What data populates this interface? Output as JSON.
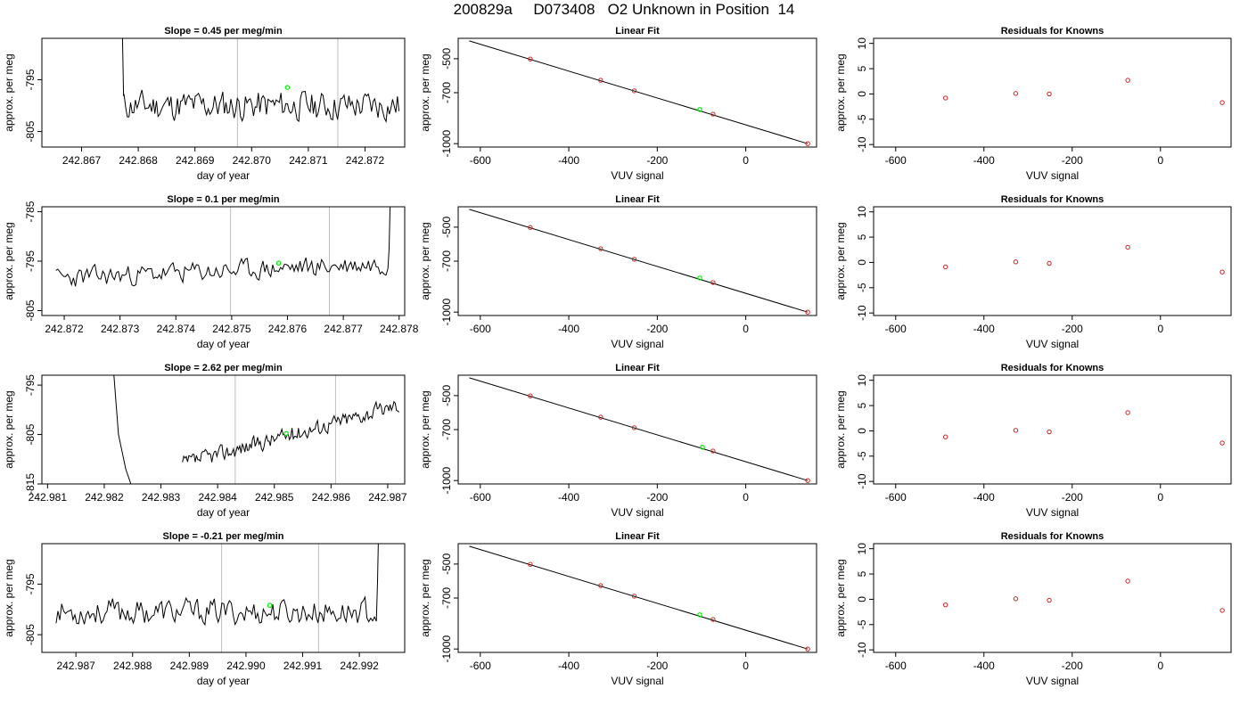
{
  "page": {
    "title": "200829a     D073408   O2 Unknown in Position  14"
  },
  "colors": {
    "trace": "#000000",
    "window_marker": "#bebebe",
    "unknown_point": "#00ee00",
    "known_point": "#cc2222",
    "axis": "#000000"
  },
  "chart_data": [
    {
      "type": "line",
      "row": 0,
      "col": 0,
      "title": "Slope =  0.45  per meg/min",
      "xlabel": "day of year",
      "ylabel": "approx. per meg",
      "xlim": [
        242.8663,
        242.8727
      ],
      "ylim": [
        -808,
        -787
      ],
      "x_ticks": [
        "242.867",
        "242.868",
        "242.869",
        "242.870",
        "242.871",
        "242.872"
      ],
      "x_tick_values": [
        242.867,
        242.868,
        242.869,
        242.87,
        242.871,
        242.872
      ],
      "y_ticks": [
        "-805",
        "-795"
      ],
      "y_tick_values": [
        -805,
        -795
      ],
      "window_markers": [
        242.86975,
        242.87152
      ],
      "unknown_point": {
        "x": 242.87063,
        "y": -796.5
      },
      "trace": {
        "x_start": 242.86775,
        "x_end": 242.8726,
        "base": -800,
        "amplitude": 2.5,
        "trend": 0,
        "seed": 11,
        "start_spike": -780,
        "end_spike": null
      }
    },
    {
      "type": "scatter",
      "row": 0,
      "col": 1,
      "title": "Linear Fit",
      "xlabel": "VUV signal",
      "ylabel": "approx. per meg",
      "xlim": [
        -650,
        160
      ],
      "ylim": [
        -1020,
        -380
      ],
      "x_ticks": [
        "-600",
        "-400",
        "-200",
        "0"
      ],
      "x_tick_values": [
        -600,
        -400,
        -200,
        0
      ],
      "y_ticks": [
        "-1000",
        "-700",
        "-500"
      ],
      "y_tick_values": [
        -1000,
        -700,
        -500
      ],
      "fit_line": {
        "x": [
          -625,
          140
        ],
        "y": [
          -395,
          -1000
        ]
      },
      "known_points": [
        {
          "x": -487,
          "y": -502
        },
        {
          "x": -328,
          "y": -627
        },
        {
          "x": -252,
          "y": -689
        },
        {
          "x": -74,
          "y": -826
        },
        {
          "x": 140,
          "y": -1000
        }
      ],
      "unknown_point": {
        "x": -104,
        "y": -799
      }
    },
    {
      "type": "scatter",
      "row": 0,
      "col": 2,
      "title": "Residuals for Knowns",
      "xlabel": "VUV signal",
      "ylabel": "approx. per meg",
      "xlim": [
        -650,
        160
      ],
      "ylim": [
        -10.5,
        11
      ],
      "x_ticks": [
        "-600",
        "-400",
        "-200",
        "0"
      ],
      "x_tick_values": [
        -600,
        -400,
        -200,
        0
      ],
      "y_ticks": [
        "-10",
        "-5",
        "0",
        "5",
        "10"
      ],
      "y_tick_values": [
        -10,
        -5,
        0,
        5,
        10
      ],
      "known_points": [
        {
          "x": -487,
          "y": -0.8
        },
        {
          "x": -328,
          "y": 0.1
        },
        {
          "x": -252,
          "y": 0.0
        },
        {
          "x": -74,
          "y": 2.7
        },
        {
          "x": 140,
          "y": -1.7
        }
      ]
    },
    {
      "type": "line",
      "row": 1,
      "col": 0,
      "title": "Slope =  0.1  per meg/min",
      "xlabel": "day of year",
      "ylabel": "approx. per meg",
      "xlim": [
        242.8716,
        242.8781
      ],
      "ylim": [
        -806,
        -784
      ],
      "x_ticks": [
        "242.872",
        "242.873",
        "242.874",
        "242.875",
        "242.876",
        "242.877",
        "242.878"
      ],
      "x_tick_values": [
        242.872,
        242.873,
        242.874,
        242.875,
        242.876,
        242.877,
        242.878
      ],
      "y_ticks": [
        "-805",
        "-795",
        "-785"
      ],
      "y_tick_values": [
        -805,
        -795,
        -785
      ],
      "window_markers": [
        242.87498,
        242.87675
      ],
      "unknown_point": {
        "x": 242.87584,
        "y": -795.4
      },
      "trace": {
        "x_start": 242.87185,
        "x_end": 242.8778,
        "base": -798.5,
        "amplitude": 1.8,
        "trend": 3,
        "seed": 23,
        "start_spike": null,
        "end_spike": -783
      }
    },
    {
      "type": "scatter",
      "row": 1,
      "col": 1,
      "title": "Linear Fit",
      "xlabel": "VUV signal",
      "ylabel": "approx. per meg",
      "xlim": [
        -650,
        160
      ],
      "ylim": [
        -1020,
        -380
      ],
      "x_ticks": [
        "-600",
        "-400",
        "-200",
        "0"
      ],
      "x_tick_values": [
        -600,
        -400,
        -200,
        0
      ],
      "y_ticks": [
        "-1000",
        "-700",
        "-500"
      ],
      "y_tick_values": [
        -1000,
        -700,
        -500
      ],
      "fit_line": {
        "x": [
          -625,
          140
        ],
        "y": [
          -395,
          -1000
        ]
      },
      "known_points": [
        {
          "x": -487,
          "y": -502
        },
        {
          "x": -328,
          "y": -627
        },
        {
          "x": -252,
          "y": -689
        },
        {
          "x": -74,
          "y": -826
        },
        {
          "x": 140,
          "y": -1000
        }
      ],
      "unknown_point": {
        "x": -104,
        "y": -799
      }
    },
    {
      "type": "scatter",
      "row": 1,
      "col": 2,
      "title": "Residuals for Knowns",
      "xlabel": "VUV signal",
      "ylabel": "approx. per meg",
      "xlim": [
        -650,
        160
      ],
      "ylim": [
        -10.5,
        11
      ],
      "x_ticks": [
        "-600",
        "-400",
        "-200",
        "0"
      ],
      "x_tick_values": [
        -600,
        -400,
        -200,
        0
      ],
      "y_ticks": [
        "-10",
        "-5",
        "0",
        "5",
        "10"
      ],
      "y_tick_values": [
        -10,
        -5,
        0,
        5,
        10
      ],
      "known_points": [
        {
          "x": -487,
          "y": -0.9
        },
        {
          "x": -328,
          "y": 0.1
        },
        {
          "x": -252,
          "y": -0.2
        },
        {
          "x": -74,
          "y": 3.0
        },
        {
          "x": 140,
          "y": -1.9
        }
      ]
    },
    {
      "type": "line",
      "row": 2,
      "col": 0,
      "title": "Slope =  2.62  per meg/min",
      "xlabel": "day of year",
      "ylabel": "approx. per meg",
      "xlim": [
        242.9809,
        242.9873
      ],
      "ylim": [
        -815,
        -793
      ],
      "x_ticks": [
        "242.981",
        "242.982",
        "242.983",
        "242.984",
        "242.985",
        "242.986",
        "242.987"
      ],
      "x_tick_values": [
        242.981,
        242.982,
        242.983,
        242.984,
        242.985,
        242.986,
        242.987
      ],
      "y_ticks": [
        "-815",
        "-805",
        "-795"
      ],
      "y_tick_values": [
        -815,
        -805,
        -795
      ],
      "window_markers": [
        242.98431,
        242.98608
      ],
      "unknown_point": {
        "x": 242.98521,
        "y": -804.8
      },
      "trace": {
        "x_start": 242.98338,
        "x_end": 242.9872,
        "base": -811,
        "amplitude": 1.4,
        "trend": 12,
        "seed": 37,
        "start_spike": null,
        "end_spike": null
      },
      "drop_segment": {
        "x": [
          242.98215,
          242.98225,
          242.98238,
          242.9825
        ],
        "y": [
          -790,
          -805,
          -812,
          -816
        ]
      }
    },
    {
      "type": "scatter",
      "row": 2,
      "col": 1,
      "title": "Linear Fit",
      "xlabel": "VUV signal",
      "ylabel": "approx. per meg",
      "xlim": [
        -650,
        160
      ],
      "ylim": [
        -1020,
        -380
      ],
      "x_ticks": [
        "-600",
        "-400",
        "-200",
        "0"
      ],
      "x_tick_values": [
        -600,
        -400,
        -200,
        0
      ],
      "y_ticks": [
        "-1000",
        "-700",
        "-500"
      ],
      "y_tick_values": [
        -1000,
        -700,
        -500
      ],
      "fit_line": {
        "x": [
          -625,
          140
        ],
        "y": [
          -395,
          -1000
        ]
      },
      "known_points": [
        {
          "x": -487,
          "y": -502
        },
        {
          "x": -328,
          "y": -627
        },
        {
          "x": -252,
          "y": -689
        },
        {
          "x": -74,
          "y": -826
        },
        {
          "x": 140,
          "y": -1000
        }
      ],
      "unknown_point": {
        "x": -98,
        "y": -804
      }
    },
    {
      "type": "scatter",
      "row": 2,
      "col": 2,
      "title": "Residuals for Knowns",
      "xlabel": "VUV signal",
      "ylabel": "approx. per meg",
      "xlim": [
        -650,
        160
      ],
      "ylim": [
        -10.5,
        11
      ],
      "x_ticks": [
        "-600",
        "-400",
        "-200",
        "0"
      ],
      "x_tick_values": [
        -600,
        -400,
        -200,
        0
      ],
      "y_ticks": [
        "-10",
        "-5",
        "0",
        "5",
        "10"
      ],
      "y_tick_values": [
        -10,
        -5,
        0,
        5,
        10
      ],
      "known_points": [
        {
          "x": -487,
          "y": -1.2
        },
        {
          "x": -328,
          "y": 0.1
        },
        {
          "x": -252,
          "y": -0.2
        },
        {
          "x": -74,
          "y": 3.6
        },
        {
          "x": 140,
          "y": -2.4
        }
      ]
    },
    {
      "type": "line",
      "row": 3,
      "col": 0,
      "title": "Slope =  -0.21  per meg/min",
      "xlabel": "day of year",
      "ylabel": "approx. per meg",
      "xlim": [
        242.9864,
        242.9928
      ],
      "ylim": [
        -808.5,
        -787
      ],
      "x_ticks": [
        "242.987",
        "242.988",
        "242.989",
        "242.990",
        "242.991",
        "242.992"
      ],
      "x_tick_values": [
        242.987,
        242.988,
        242.989,
        242.99,
        242.991,
        242.992
      ],
      "y_ticks": [
        "-805",
        "-795"
      ],
      "y_tick_values": [
        -805,
        -795
      ],
      "window_markers": [
        242.98957,
        242.99128
      ],
      "unknown_point": {
        "x": 242.99042,
        "y": -799.2
      },
      "trace": {
        "x_start": 242.98665,
        "x_end": 242.9923,
        "base": -800.5,
        "amplitude": 2.2,
        "trend": 0,
        "seed": 53,
        "start_spike": null,
        "end_spike": -784
      }
    },
    {
      "type": "scatter",
      "row": 3,
      "col": 1,
      "title": "Linear Fit",
      "xlabel": "VUV signal",
      "ylabel": "approx. per meg",
      "xlim": [
        -650,
        160
      ],
      "ylim": [
        -1020,
        -380
      ],
      "x_ticks": [
        "-600",
        "-400",
        "-200",
        "0"
      ],
      "x_tick_values": [
        -600,
        -400,
        -200,
        0
      ],
      "y_ticks": [
        "-1000",
        "-700",
        "-500"
      ],
      "y_tick_values": [
        -1000,
        -700,
        -500
      ],
      "fit_line": {
        "x": [
          -625,
          140
        ],
        "y": [
          -395,
          -1000
        ]
      },
      "known_points": [
        {
          "x": -487,
          "y": -502
        },
        {
          "x": -328,
          "y": -627
        },
        {
          "x": -252,
          "y": -689
        },
        {
          "x": -74,
          "y": -826
        },
        {
          "x": 140,
          "y": -1000
        }
      ],
      "unknown_point": {
        "x": -104,
        "y": -799
      }
    },
    {
      "type": "scatter",
      "row": 3,
      "col": 2,
      "title": "Residuals for Knowns",
      "xlabel": "VUV signal",
      "ylabel": "approx. per meg",
      "xlim": [
        -650,
        160
      ],
      "ylim": [
        -10.5,
        11
      ],
      "x_ticks": [
        "-600",
        "-400",
        "-200",
        "0"
      ],
      "x_tick_values": [
        -600,
        -400,
        -200,
        0
      ],
      "y_ticks": [
        "-10",
        "-5",
        "0",
        "5",
        "10"
      ],
      "y_tick_values": [
        -10,
        -5,
        0,
        5,
        10
      ],
      "known_points": [
        {
          "x": -487,
          "y": -1.1
        },
        {
          "x": -328,
          "y": 0.1
        },
        {
          "x": -252,
          "y": -0.2
        },
        {
          "x": -74,
          "y": 3.6
        },
        {
          "x": 140,
          "y": -2.2
        }
      ]
    }
  ]
}
